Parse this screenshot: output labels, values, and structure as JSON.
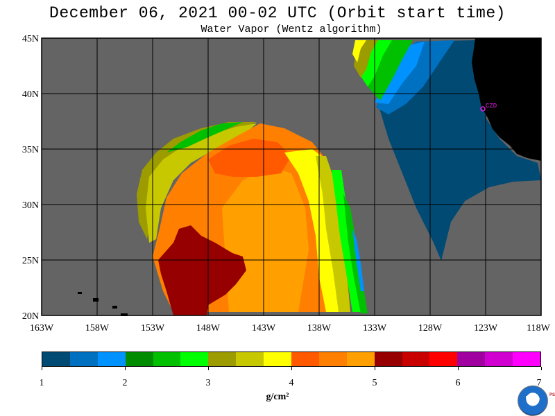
{
  "title": "December 06, 2021  00-02 UTC  (Orbit start time)",
  "subtitle": "Water Vapor (Wentz algorithm)",
  "map": {
    "lat_labels": [
      "45N",
      "40N",
      "35N",
      "30N",
      "25N",
      "20N"
    ],
    "lon_labels": [
      "163W",
      "158W",
      "153W",
      "148W",
      "143W",
      "138W",
      "133W",
      "128W",
      "123W",
      "118W"
    ],
    "station_label": "CZD",
    "colors": {
      "no_data": "#646464",
      "land": "#000000",
      "grid": "#000000",
      "station": "#e01ee0"
    }
  },
  "colorbar": {
    "colors": [
      "#004a74",
      "#0070c0",
      "#0092ff",
      "#008c00",
      "#00c000",
      "#00ff00",
      "#9c9c00",
      "#c8c800",
      "#ffff00",
      "#ff5a00",
      "#ff8000",
      "#ffa000",
      "#960000",
      "#c80000",
      "#ff0000",
      "#a000a0",
      "#d000d0",
      "#ff00ff"
    ],
    "tick_labels": [
      "1",
      "2",
      "3",
      "4",
      "5",
      "6",
      "7"
    ],
    "units": "g/cm²"
  },
  "logo": {
    "text": "NOAA",
    "side_text": "PSL"
  }
}
